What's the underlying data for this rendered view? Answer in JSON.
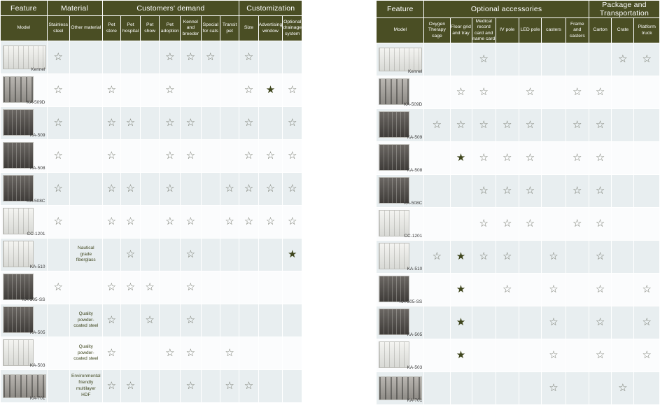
{
  "stars": {
    "outline": "☆",
    "filled": "★"
  },
  "colors": {
    "header_bg": "#4a4e24",
    "row_alt_bg": "#e8eef0",
    "row_base_bg": "#fbfcfd",
    "star_outline": "#72756a",
    "star_filled": "#3e451c"
  },
  "left_table": {
    "groups": [
      {
        "label": "Feature",
        "span": 1
      },
      {
        "label": "Material",
        "span": 2
      },
      {
        "label": "Customers' demand",
        "span": 7
      },
      {
        "label": "Customization",
        "span": 3
      }
    ],
    "columns": [
      "Model",
      "Stainless steel",
      "Other material",
      "Pet store",
      "Pet hospital",
      "Pet show",
      "Pet adoption",
      "Kennel and breeder",
      "Special for cats",
      "Transit pet",
      "Size",
      "Advertising window",
      "Optional drainage system"
    ],
    "rows": [
      {
        "model": "Kennel",
        "thumb": "light wide",
        "cells": [
          "o",
          "",
          "",
          "",
          "",
          "o",
          "o",
          "o",
          "",
          "o",
          "",
          ""
        ]
      },
      {
        "model": "KA-509D",
        "thumb": "mid",
        "cells": [
          "o",
          "",
          "o",
          "",
          "",
          "o",
          "",
          "",
          "",
          "o",
          "f",
          "o"
        ]
      },
      {
        "model": "KA-509",
        "thumb": "dark",
        "cells": [
          "o",
          "",
          "o",
          "o",
          "",
          "o",
          "o",
          "",
          "",
          "o",
          "",
          "o"
        ]
      },
      {
        "model": "KA-508",
        "thumb": "dark",
        "cells": [
          "o",
          "",
          "o",
          "",
          "",
          "o",
          "o",
          "",
          "",
          "o",
          "o",
          "o"
        ]
      },
      {
        "model": "KA-508C",
        "thumb": "dark",
        "cells": [
          "o",
          "",
          "o",
          "o",
          "",
          "o",
          "",
          "",
          "o",
          "o",
          "o",
          "o"
        ]
      },
      {
        "model": "CC-1201",
        "thumb": "light",
        "cells": [
          "o",
          "",
          "o",
          "o",
          "",
          "o",
          "o",
          "",
          "o",
          "o",
          "o",
          "o"
        ]
      },
      {
        "model": "KA-510",
        "thumb": "light",
        "cells": [
          "",
          "Nautical grade fiberglass",
          "",
          "o",
          "",
          "",
          "o",
          "",
          "",
          "",
          "",
          "f"
        ]
      },
      {
        "model": "KA-505-SS",
        "thumb": "dark",
        "cells": [
          "o",
          "",
          "o",
          "o",
          "o",
          "",
          "o",
          "",
          "",
          "",
          "",
          ""
        ]
      },
      {
        "model": "KA-505",
        "thumb": "dark",
        "cells": [
          "",
          "Quality powder-coated steel",
          "o",
          "",
          "o",
          "",
          "o",
          "",
          "",
          "",
          "",
          ""
        ]
      },
      {
        "model": "KA-503",
        "thumb": "light",
        "cells": [
          "",
          "Quality powder-coated steel",
          "o",
          "",
          "",
          "o",
          "o",
          "",
          "o",
          "",
          "",
          ""
        ]
      },
      {
        "model": "KA-701",
        "thumb": "mid wide",
        "cells": [
          "",
          "Environmental friendly multilayer HDF",
          "o",
          "o",
          "",
          "",
          "o",
          "",
          "o",
          "o",
          "",
          ""
        ]
      }
    ]
  },
  "right_table": {
    "groups": [
      {
        "label": "Feature",
        "span": 1
      },
      {
        "label": "Optional accessories",
        "span": 7
      },
      {
        "label": "Package and Transportation",
        "span": 3
      }
    ],
    "columns": [
      "Model",
      "Oxygen Therapy cage",
      "Floor grid and tray",
      "Medical record card and name card",
      "IV pole",
      "LED pole",
      "casters",
      "Frame and casters",
      "Carton",
      "Crate",
      "Platform truck"
    ],
    "rows": [
      {
        "model": "Kennel",
        "thumb": "light wide",
        "cells": [
          "",
          "",
          "o",
          "",
          "",
          "",
          "",
          "",
          "o",
          "o"
        ]
      },
      {
        "model": "KA-509D",
        "thumb": "mid",
        "cells": [
          "",
          "o",
          "o",
          "",
          "o",
          "",
          "o",
          "o",
          "",
          ""
        ]
      },
      {
        "model": "KA-509",
        "thumb": "dark",
        "cells": [
          "o",
          "o",
          "o",
          "o",
          "o",
          "",
          "o",
          "o",
          "",
          ""
        ]
      },
      {
        "model": "KA-508",
        "thumb": "dark",
        "cells": [
          "",
          "f",
          "o",
          "o",
          "o",
          "",
          "o",
          "o",
          "",
          ""
        ]
      },
      {
        "model": "KA-508C",
        "thumb": "dark",
        "cells": [
          "",
          "",
          "o",
          "o",
          "o",
          "",
          "o",
          "o",
          "",
          ""
        ]
      },
      {
        "model": "CC-1201",
        "thumb": "light",
        "cells": [
          "",
          "",
          "o",
          "o",
          "o",
          "",
          "o",
          "o",
          "",
          ""
        ]
      },
      {
        "model": "KA-510",
        "thumb": "light",
        "cells": [
          "o",
          "f",
          "o",
          "o",
          "",
          "o",
          "",
          "o",
          "",
          ""
        ]
      },
      {
        "model": "KA-505-SS",
        "thumb": "dark",
        "cells": [
          "",
          "f",
          "",
          "o",
          "",
          "o",
          "",
          "o",
          "",
          "o"
        ]
      },
      {
        "model": "KA-505",
        "thumb": "dark",
        "cells": [
          "",
          "f",
          "",
          "",
          "",
          "o",
          "",
          "o",
          "",
          "o"
        ]
      },
      {
        "model": "KA-503",
        "thumb": "light",
        "cells": [
          "",
          "f",
          "",
          "",
          "",
          "o",
          "",
          "o",
          "",
          "o"
        ]
      },
      {
        "model": "KA-701",
        "thumb": "mid wide",
        "cells": [
          "",
          "",
          "",
          "",
          "",
          "o",
          "",
          "",
          "o",
          ""
        ]
      }
    ]
  }
}
